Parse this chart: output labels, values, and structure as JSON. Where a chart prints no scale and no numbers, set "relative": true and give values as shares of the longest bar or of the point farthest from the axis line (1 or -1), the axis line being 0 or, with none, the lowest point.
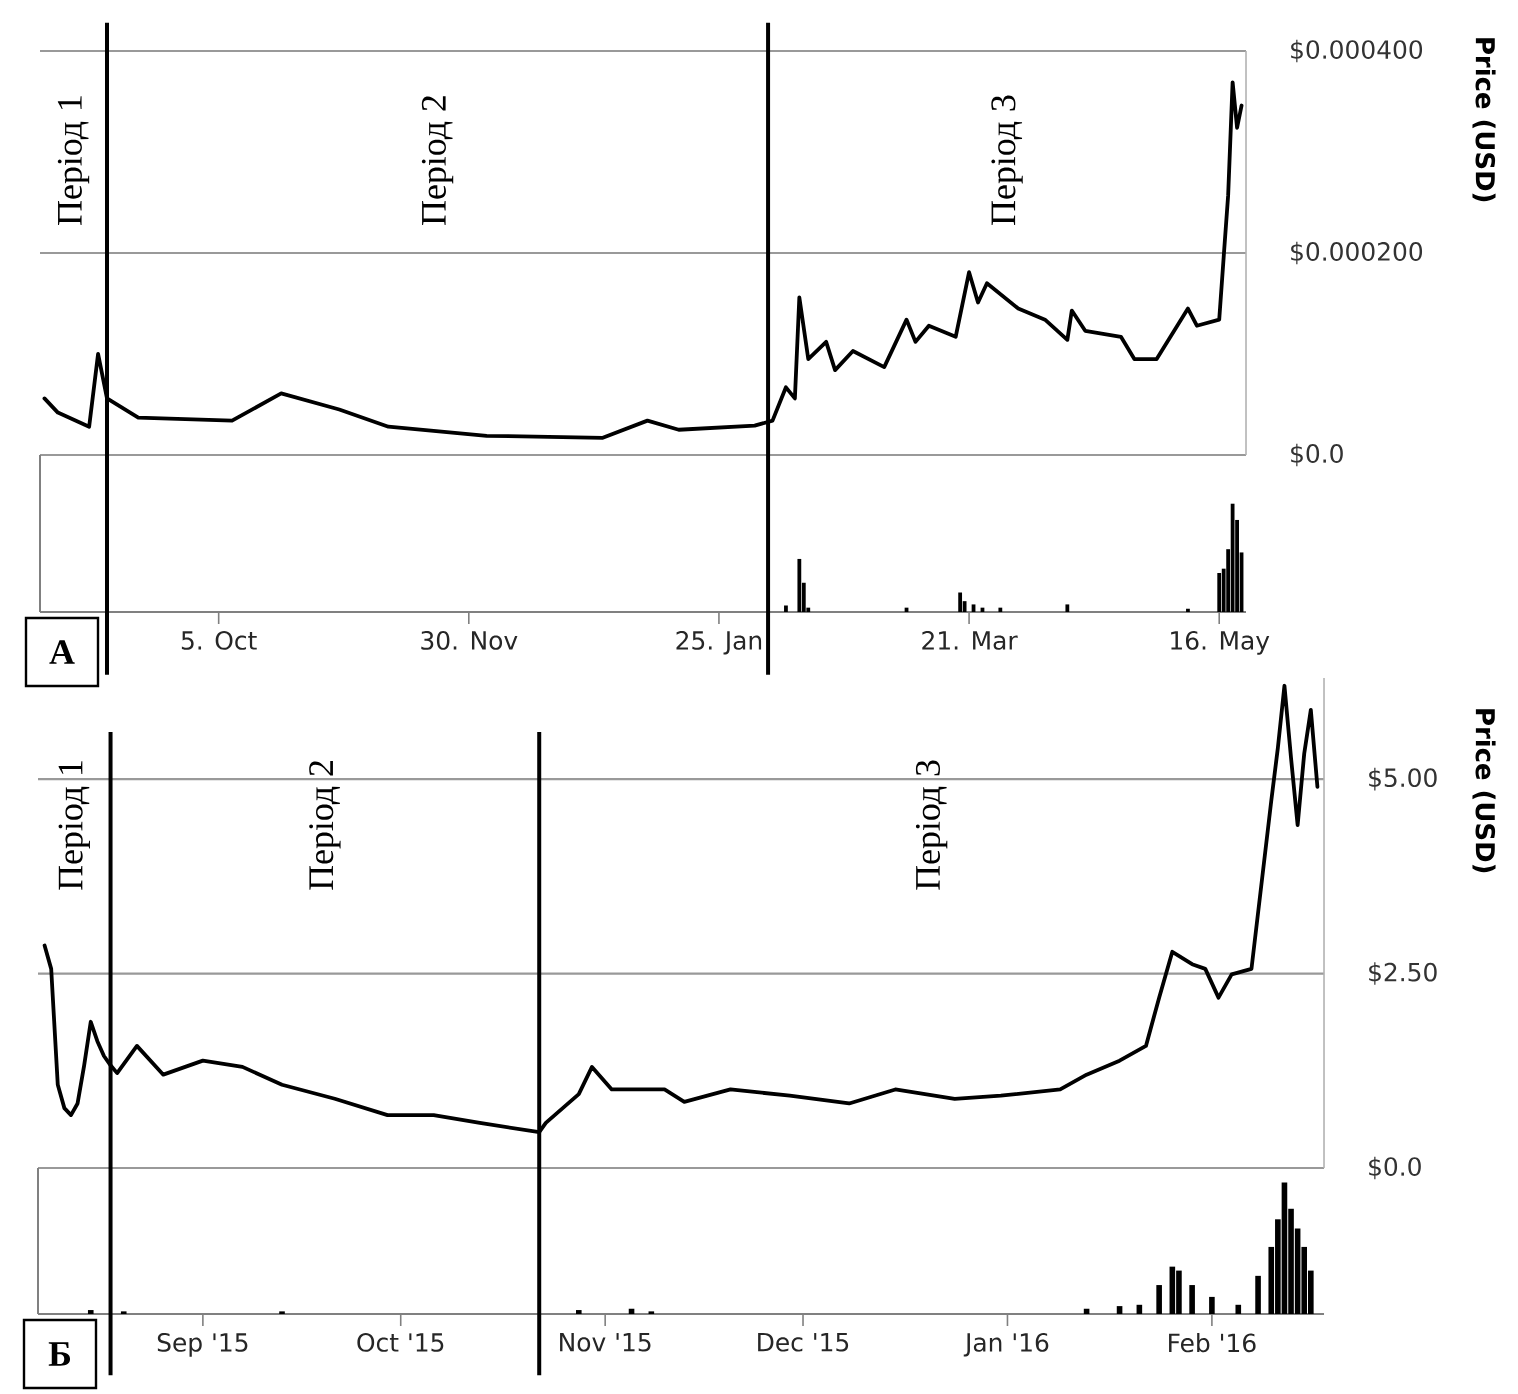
{
  "chart_data": [
    {
      "type": "line",
      "color": "#000000",
      "xlim": [
        "2015-08-26",
        "2016-05-22"
      ],
      "ylim": [
        0,
        0.0004
      ],
      "ylabel": "Price (USD)",
      "grid": "y",
      "tick_labels": "y",
      "yticks": [
        {
          "value": 0,
          "label": "$0.0"
        },
        {
          "value": 0.0002,
          "label": "$0.000200"
        },
        {
          "value": 0.0004,
          "label": "$0.000400"
        }
      ],
      "x": [
        "2015-08-27",
        "2015-08-30",
        "2015-09-06",
        "2015-09-08",
        "2015-09-10",
        "2015-09-17",
        "2015-10-08",
        "2015-10-19",
        "2015-11-01",
        "2015-11-12",
        "2015-12-04",
        "2015-12-30",
        "2016-01-09",
        "2016-01-16",
        "2016-02-02",
        "2016-02-06",
        "2016-02-09",
        "2016-02-11",
        "2016-02-12",
        "2016-02-14",
        "2016-02-18",
        "2016-02-20",
        "2016-02-24",
        "2016-03-02",
        "2016-03-07",
        "2016-03-09",
        "2016-03-12",
        "2016-03-18",
        "2016-03-21",
        "2016-03-23",
        "2016-03-25",
        "2016-04-01",
        "2016-04-07",
        "2016-04-12",
        "2016-04-13",
        "2016-04-16",
        "2016-04-24",
        "2016-04-27",
        "2016-05-02",
        "2016-05-09",
        "2016-05-11",
        "2016-05-16",
        "2016-05-17",
        "2016-05-18",
        "2016-05-19",
        "2016-05-20",
        "2016-05-21"
      ],
      "values": [
        5.6e-05,
        4.2e-05,
        2.8e-05,
        0.0001,
        5.6e-05,
        3.7e-05,
        3.4e-05,
        6.1e-05,
        4.5e-05,
        2.8e-05,
        1.9e-05,
        1.7e-05,
        3.4e-05,
        2.5e-05,
        2.9e-05,
        3.4e-05,
        6.7e-05,
        5.6e-05,
        0.000156,
        9.5e-05,
        0.000112,
        8.4e-05,
        0.000103,
        8.7e-05,
        0.000134,
        0.000112,
        0.000128,
        0.000117,
        0.000181,
        0.000151,
        0.00017,
        0.000145,
        0.000134,
        0.000114,
        0.000143,
        0.000123,
        0.000117,
        9.5e-05,
        9.5e-05,
        0.000145,
        0.000128,
        0.000134,
        0.000196,
        0.000257,
        0.000369,
        0.000324,
        0.000346
      ],
      "ref_lines": [
        {
          "axis": "x",
          "value": "2015-09-10",
          "color": "#000000"
        },
        {
          "axis": "x",
          "value": "2016-02-05",
          "color": "#000000"
        }
      ],
      "annotations": [
        "Період 1",
        "Період 2",
        "Період 3"
      ]
    },
    {
      "type": "bar",
      "relative": true,
      "color": "#000000",
      "xlim": [
        "2015-08-26",
        "2016-05-22"
      ],
      "tick_labels": "x",
      "xticks": [
        {
          "value": "2015-10-05",
          "label": "5. Oct"
        },
        {
          "value": "2015-11-30",
          "label": "30. Nov"
        },
        {
          "value": "2016-01-25",
          "label": "25. Jan"
        },
        {
          "value": "2016-03-21",
          "label": "21. Mar"
        },
        {
          "value": "2016-05-16",
          "label": "16. May"
        }
      ],
      "x": [
        "2016-02-09",
        "2016-02-12",
        "2016-02-13",
        "2016-02-14",
        "2016-03-07",
        "2016-03-19",
        "2016-03-20",
        "2016-03-22",
        "2016-03-24",
        "2016-03-28",
        "2016-04-12",
        "2016-05-09",
        "2016-05-16",
        "2016-05-17",
        "2016-05-18",
        "2016-05-19",
        "2016-05-20",
        "2016-05-21"
      ],
      "values": [
        0.06,
        0.49,
        0.27,
        0.04,
        0.04,
        0.18,
        0.1,
        0.07,
        0.04,
        0.04,
        0.07,
        0.03,
        0.36,
        0.4,
        0.58,
        1.0,
        0.85,
        0.55
      ],
      "ref_lines": [
        {
          "axis": "x",
          "value": "2015-09-10",
          "color": "#000000"
        },
        {
          "axis": "x",
          "value": "2016-02-05",
          "color": "#000000"
        }
      ],
      "annotations": [
        "А"
      ]
    },
    {
      "type": "line",
      "color": "#000000",
      "xlim": [
        "2015-08-07",
        "2016-02-18"
      ],
      "ylim": [
        0,
        6.3
      ],
      "ylabel": "Price (USD)",
      "grid": "y",
      "tick_labels": "y",
      "yticks": [
        {
          "value": 0,
          "label": "$0.0"
        },
        {
          "value": 2.5,
          "label": "$2.50"
        },
        {
          "value": 5,
          "label": "$5.00"
        }
      ],
      "x": [
        "2015-08-08",
        "2015-08-09",
        "2015-08-10",
        "2015-08-11",
        "2015-08-12",
        "2015-08-13",
        "2015-08-14",
        "2015-08-15",
        "2015-08-16",
        "2015-08-17",
        "2015-08-18",
        "2015-08-19",
        "2015-08-22",
        "2015-08-26",
        "2015-09-01",
        "2015-09-07",
        "2015-09-13",
        "2015-09-21",
        "2015-09-29",
        "2015-10-06",
        "2015-10-13",
        "2015-10-22",
        "2015-10-23",
        "2015-10-28",
        "2015-10-30",
        "2015-11-02",
        "2015-11-10",
        "2015-11-13",
        "2015-11-20",
        "2015-11-29",
        "2015-12-08",
        "2015-12-15",
        "2015-12-24",
        "2015-12-31",
        "2016-01-09",
        "2016-01-13",
        "2016-01-18",
        "2016-01-22",
        "2016-01-24",
        "2016-01-26",
        "2016-01-29",
        "2016-01-31",
        "2016-02-02",
        "2016-02-04",
        "2016-02-07",
        "2016-02-10",
        "2016-02-11",
        "2016-02-12",
        "2016-02-13",
        "2016-02-14",
        "2016-02-15",
        "2016-02-16",
        "2016-02-17"
      ],
      "values": [
        2.86,
        2.56,
        1.07,
        0.77,
        0.68,
        0.83,
        1.32,
        1.88,
        1.63,
        1.44,
        1.32,
        1.22,
        1.57,
        1.2,
        1.38,
        1.3,
        1.07,
        0.89,
        0.68,
        0.68,
        0.58,
        0.46,
        0.58,
        0.95,
        1.3,
        1.01,
        1.01,
        0.85,
        1.01,
        0.93,
        0.83,
        1.01,
        0.89,
        0.93,
        1.01,
        1.2,
        1.38,
        1.57,
        2.19,
        2.78,
        2.62,
        2.56,
        2.19,
        2.49,
        2.56,
        4.72,
        5.4,
        6.2,
        5.27,
        4.41,
        5.33,
        5.89,
        4.9
      ],
      "ref_lines": [
        {
          "axis": "x",
          "value": "2015-08-18",
          "color": "#000000"
        },
        {
          "axis": "x",
          "value": "2015-10-22",
          "color": "#000000"
        }
      ],
      "annotations": [
        "Період 1",
        "Період 2",
        "Період 3"
      ]
    },
    {
      "type": "bar",
      "relative": true,
      "color": "#000000",
      "xlim": [
        "2015-08-07",
        "2016-02-18"
      ],
      "tick_labels": "x",
      "xticks": [
        {
          "value": "2015-09-01",
          "label": "Sep '15"
        },
        {
          "value": "2015-10-01",
          "label": "Oct '15"
        },
        {
          "value": "2015-11-01",
          "label": "Nov '15"
        },
        {
          "value": "2015-12-01",
          "label": "Dec '15"
        },
        {
          "value": "2016-01-01",
          "label": "Jan '16"
        },
        {
          "value": "2016-02-01",
          "label": "Feb '16"
        }
      ],
      "x": [
        "2015-08-15",
        "2015-08-20",
        "2015-09-13",
        "2015-10-28",
        "2015-11-05",
        "2015-11-08",
        "2016-01-13",
        "2016-01-18",
        "2016-01-21",
        "2016-01-24",
        "2016-01-26",
        "2016-01-27",
        "2016-01-29",
        "2016-02-01",
        "2016-02-05",
        "2016-02-08",
        "2016-02-10",
        "2016-02-11",
        "2016-02-12",
        "2016-02-13",
        "2016-02-14",
        "2016-02-15",
        "2016-02-16"
      ],
      "values": [
        0.03,
        0.02,
        0.02,
        0.03,
        0.04,
        0.02,
        0.04,
        0.06,
        0.07,
        0.22,
        0.36,
        0.33,
        0.22,
        0.13,
        0.07,
        0.29,
        0.51,
        0.72,
        1.0,
        0.8,
        0.65,
        0.51,
        0.33
      ],
      "ref_lines": [
        {
          "axis": "x",
          "value": "2015-08-18",
          "color": "#000000"
        },
        {
          "axis": "x",
          "value": "2015-10-22",
          "color": "#000000"
        }
      ],
      "annotations": [
        "Б"
      ]
    }
  ]
}
